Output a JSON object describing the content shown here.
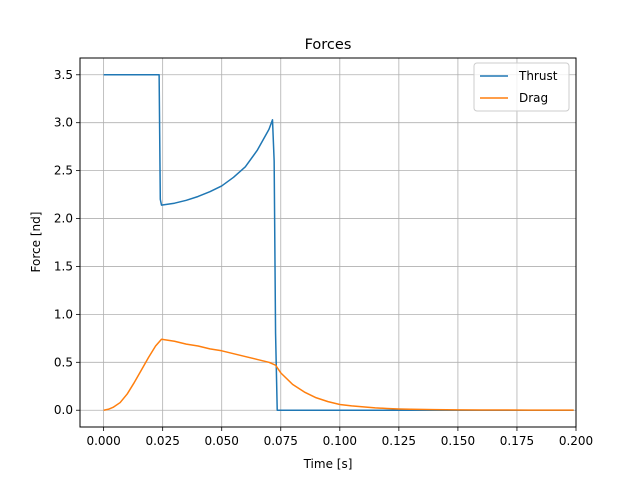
{
  "chart_data": {
    "type": "line",
    "title": "Forces",
    "xlabel": "Time [s]",
    "ylabel": "Force [nd]",
    "xlim": [
      -0.01,
      0.2
    ],
    "ylim": [
      -0.175,
      3.675
    ],
    "xticks": [
      "0.000",
      "0.025",
      "0.050",
      "0.075",
      "0.100",
      "0.125",
      "0.150",
      "0.175",
      "0.200"
    ],
    "yticks": [
      "0.0",
      "0.5",
      "1.0",
      "1.5",
      "2.0",
      "2.5",
      "3.0",
      "3.5"
    ],
    "grid": true,
    "legend_position": "top-right",
    "series": [
      {
        "name": "Thrust",
        "color": "#1f77b4",
        "x": [
          0.0,
          0.0235,
          0.024,
          0.0245,
          0.03,
          0.035,
          0.04,
          0.045,
          0.05,
          0.055,
          0.06,
          0.065,
          0.07,
          0.0715,
          0.0722,
          0.0728,
          0.0735,
          0.1,
          0.125,
          0.15,
          0.175,
          0.199
        ],
        "y": [
          3.5,
          3.5,
          2.2,
          2.14,
          2.16,
          2.19,
          2.23,
          2.28,
          2.34,
          2.43,
          2.54,
          2.71,
          2.93,
          3.03,
          2.6,
          0.8,
          0.0,
          0.0,
          0.0,
          0.0,
          0.0,
          0.0
        ]
      },
      {
        "name": "Drag",
        "color": "#ff7f0e",
        "x": [
          0.0,
          0.002,
          0.004,
          0.007,
          0.01,
          0.013,
          0.016,
          0.019,
          0.022,
          0.0245,
          0.03,
          0.035,
          0.04,
          0.045,
          0.05,
          0.055,
          0.06,
          0.065,
          0.07,
          0.0728,
          0.075,
          0.08,
          0.085,
          0.09,
          0.095,
          0.1,
          0.105,
          0.11,
          0.115,
          0.12,
          0.125,
          0.13,
          0.14,
          0.15,
          0.16,
          0.17,
          0.18,
          0.19,
          0.199
        ],
        "y": [
          0.0,
          0.01,
          0.03,
          0.08,
          0.17,
          0.29,
          0.42,
          0.55,
          0.67,
          0.74,
          0.72,
          0.69,
          0.67,
          0.64,
          0.62,
          0.59,
          0.56,
          0.53,
          0.5,
          0.47,
          0.39,
          0.27,
          0.19,
          0.13,
          0.09,
          0.06,
          0.045,
          0.035,
          0.025,
          0.018,
          0.013,
          0.01,
          0.006,
          0.004,
          0.003,
          0.002,
          0.001,
          0.001,
          0.001
        ]
      }
    ]
  }
}
